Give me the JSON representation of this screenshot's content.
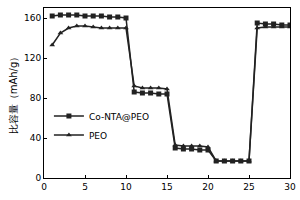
{
  "chart_data": {
    "type": "line",
    "y_label": "比容量（mAh/g）",
    "x": [
      1,
      2,
      3,
      4,
      5,
      6,
      7,
      8,
      9,
      10,
      11,
      12,
      13,
      14,
      15,
      16,
      17,
      18,
      19,
      20,
      21,
      22,
      23,
      24,
      25,
      26,
      27,
      28,
      29,
      30
    ],
    "series": [
      {
        "name": "Co-NTA@PEO",
        "color": "#222222",
        "marker": "square",
        "line_style": "solid",
        "values": [
          162,
          163,
          163,
          163,
          162,
          162,
          162,
          161,
          161,
          160,
          86,
          85,
          85,
          84,
          84,
          30,
          29,
          29,
          28,
          28,
          17,
          17,
          17,
          17,
          17,
          155,
          154,
          154,
          153,
          153
        ]
      },
      {
        "name": "PEO",
        "color": "#222222",
        "marker": "triangle-up",
        "line_style": "solid",
        "values": [
          133,
          145,
          150,
          152,
          152,
          151,
          150,
          150,
          150,
          150,
          92,
          90,
          90,
          90,
          89,
          33,
          32,
          32,
          32,
          31,
          17,
          17,
          17,
          17,
          17,
          150,
          151,
          151,
          151,
          151
        ]
      }
    ],
    "xlim": [
      0,
      30
    ],
    "xticks": [
      0,
      5,
      10,
      15,
      20,
      25,
      30
    ],
    "ylim": [
      0,
      170
    ],
    "yticks": [
      0,
      40,
      80,
      120,
      160
    ],
    "grid": false,
    "legend": "left"
  }
}
